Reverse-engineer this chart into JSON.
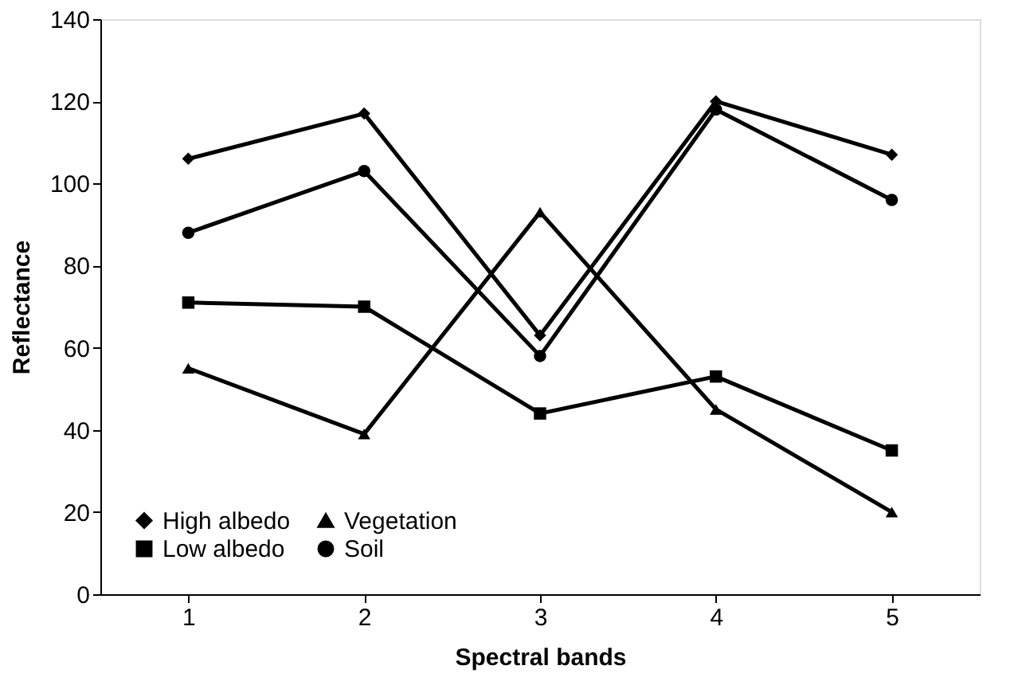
{
  "chart_data": {
    "type": "line",
    "xlabel": "Spectral bands",
    "ylabel": "Reflectance",
    "categories": [
      "1",
      "2",
      "3",
      "4",
      "5"
    ],
    "series": [
      {
        "name": "High albedo",
        "color": "#000000",
        "marker": "diamond",
        "values": [
          106,
          117,
          63,
          120,
          107
        ]
      },
      {
        "name": "Low albedo",
        "color": "#000000",
        "marker": "square",
        "values": [
          71,
          70,
          44,
          53,
          35
        ]
      },
      {
        "name": "Vegetation",
        "color": "#000000",
        "marker": "triangle",
        "values": [
          55,
          39,
          93,
          45,
          20
        ]
      },
      {
        "name": "Soil",
        "color": "#000000",
        "marker": "circle",
        "values": [
          88,
          103,
          58,
          118,
          96
        ]
      }
    ],
    "ylim": [
      0,
      140
    ],
    "yticks": [
      0,
      20,
      40,
      60,
      80,
      100,
      120,
      140
    ],
    "grid": false,
    "legend": "bottom left",
    "line_style": "solid"
  }
}
